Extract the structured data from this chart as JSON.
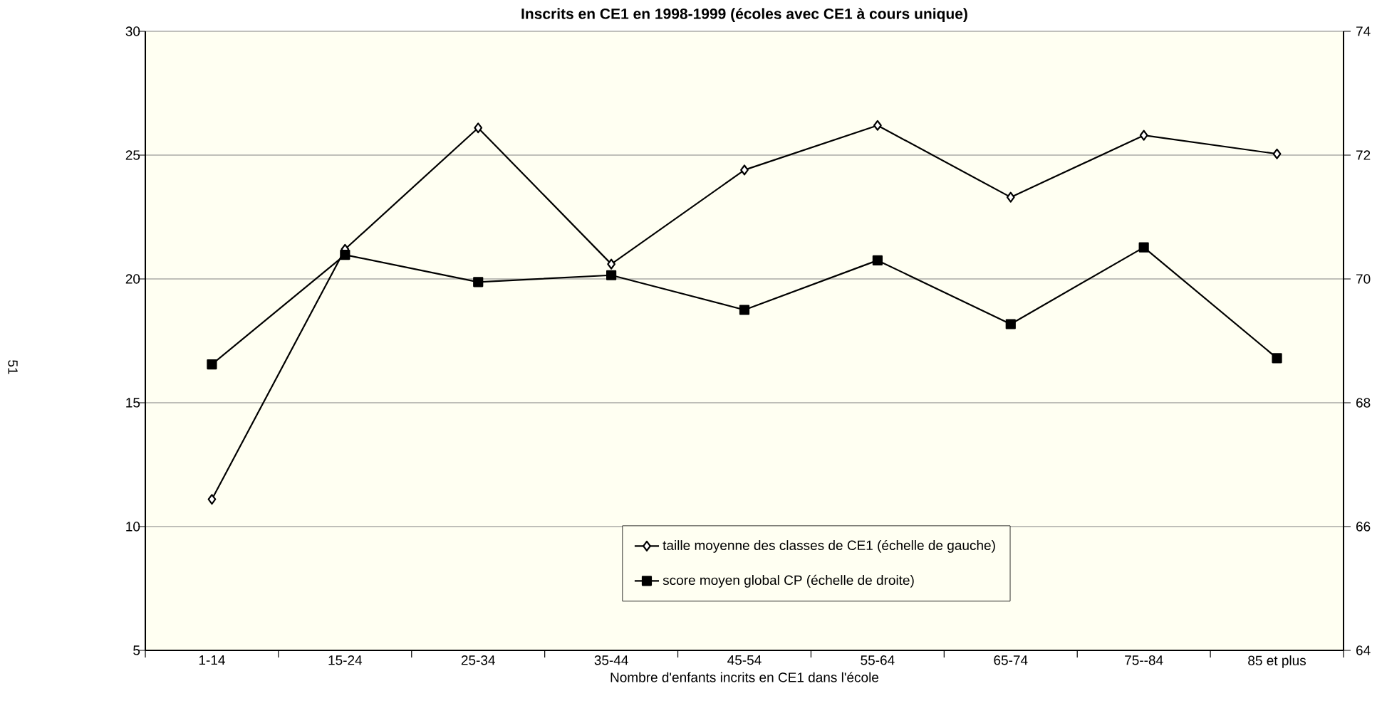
{
  "chart_data": {
    "type": "line",
    "title": "Inscrits en CE1 en 1998-1999 (écoles avec CE1 à cours unique)",
    "xlabel": "Nombre d'enfants incrits en CE1 dans l'école",
    "categories": [
      "1-14",
      "15-24",
      "25-34",
      "35-44",
      "45-54",
      "55-64",
      "65-74",
      "75--84",
      "85 et plus"
    ],
    "series": [
      {
        "name": "taille moyenne des classes de CE1 (échelle de gauche)",
        "color": "#000000",
        "marker": "diamond",
        "values": [
          11.1,
          21.2,
          26.1,
          20.6,
          24.4,
          26.2,
          23.3,
          25.8,
          25.05
        ]
      },
      {
        "name": "score moyen global CP (échelle de droite)",
        "color": "#000000",
        "marker": "square",
        "axis": "y2",
        "values": [
          68.62,
          70.39,
          69.95,
          70.06,
          69.5,
          70.3,
          69.27,
          70.51,
          68.72
        ]
      }
    ],
    "ylim": [
      5,
      30
    ],
    "yticks": [
      5,
      10,
      15,
      20,
      25,
      30
    ],
    "y2lim": [
      64,
      74
    ],
    "y2ticks": [
      64,
      66,
      68,
      70,
      72,
      74
    ],
    "grid": "y",
    "legend": "bottom",
    "annotations": [
      "51"
    ]
  }
}
